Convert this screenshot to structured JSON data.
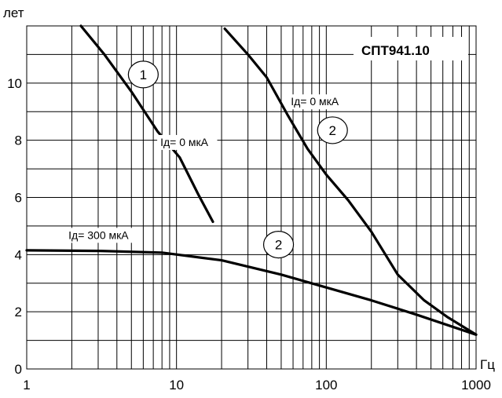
{
  "chart_data": {
    "type": "line",
    "title": "СПТ941.10",
    "xlabel": "Гц",
    "ylabel": "лет",
    "xscale": "log",
    "xlim": [
      1,
      1000
    ],
    "ylim": [
      0,
      12
    ],
    "grid": true,
    "x_ticks": [
      1,
      10,
      100,
      1000
    ],
    "x_tick_labels": [
      "1",
      "10",
      "100",
      "1000"
    ],
    "y_ticks": [
      0,
      2,
      4,
      6,
      8,
      10
    ],
    "y_tick_labels": [
      "0",
      "2",
      "4",
      "6",
      "8",
      "10"
    ],
    "series": [
      {
        "name": "",
        "points": [
          [
            2.3,
            12.0
          ],
          [
            3.3,
            11.0
          ],
          [
            5.0,
            9.7
          ],
          [
            7.5,
            8.3
          ],
          [
            10.5,
            7.4
          ],
          [
            14.0,
            6.1
          ],
          [
            17.5,
            5.15
          ]
        ]
      },
      {
        "name": "",
        "points": [
          [
            21,
            11.9
          ],
          [
            30,
            11.0
          ],
          [
            40,
            10.2
          ],
          [
            55,
            8.9
          ],
          [
            75,
            7.7
          ],
          [
            100,
            6.8
          ],
          [
            140,
            5.9
          ],
          [
            200,
            4.8
          ],
          [
            300,
            3.3
          ],
          [
            450,
            2.4
          ],
          [
            650,
            1.8
          ],
          [
            1000,
            1.2
          ]
        ]
      },
      {
        "name": "",
        "points": [
          [
            1,
            4.15
          ],
          [
            3,
            4.13
          ],
          [
            8,
            4.07
          ],
          [
            20,
            3.8
          ],
          [
            50,
            3.3
          ],
          [
            100,
            2.85
          ],
          [
            200,
            2.4
          ],
          [
            400,
            1.9
          ],
          [
            1000,
            1.2
          ]
        ]
      }
    ],
    "annotations": [
      {
        "id": "c1",
        "text": "1",
        "x": 6.0,
        "y": 10.3,
        "kind": "circle"
      },
      {
        "id": "c2a",
        "text": "2",
        "x": 110,
        "y": 8.35,
        "kind": "circle"
      },
      {
        "id": "c2b",
        "text": "2",
        "x": 48,
        "y": 4.35,
        "kind": "circle"
      },
      {
        "id": "l1",
        "text": "Iд= 0 мкА",
        "x": 58,
        "y": 9.22,
        "kind": "label"
      },
      {
        "id": "l2",
        "text": "Iд= 0 мкА",
        "x": 7.8,
        "y": 7.8,
        "kind": "label"
      },
      {
        "id": "l3",
        "text": "Iд= 300 мкА",
        "x": 1.9,
        "y": 4.55,
        "kind": "label"
      }
    ]
  }
}
